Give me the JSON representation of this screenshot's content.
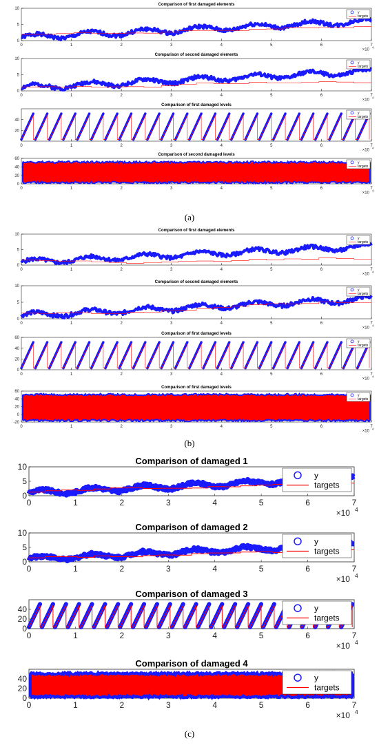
{
  "figure": {
    "panels": [
      {
        "label": "(a)",
        "small": true,
        "charts": [
          {
            "title": "Comparison of first damaged elements",
            "yticks": [
              0,
              5,
              10
            ],
            "ylim": [
              0,
              10
            ],
            "kind": "elements",
            "seed": 1
          },
          {
            "title": "Comparison of second damaged elements",
            "yticks": [
              0,
              5,
              10
            ],
            "ylim": [
              0,
              10
            ],
            "kind": "elements",
            "seed": 2
          },
          {
            "title": "Comparison of first damaged levels",
            "yticks": [
              20,
              40
            ],
            "ylim": [
              0,
              60
            ],
            "kind": "levels",
            "seed": 3
          },
          {
            "title": "Comparison of second damaged levels",
            "yticks": [
              0,
              20,
              40,
              60
            ],
            "ylim": [
              0,
              60
            ],
            "kind": "fill",
            "seed": 4
          }
        ]
      },
      {
        "label": "(b)",
        "small": true,
        "charts": [
          {
            "title": "Comparison of first damaged elements",
            "yticks": [
              0,
              5,
              10
            ],
            "ylim": [
              0,
              10
            ],
            "kind": "elements",
            "seed": 5
          },
          {
            "title": "Comparison of second damaged elements",
            "yticks": [
              0,
              5,
              10
            ],
            "ylim": [
              0,
              10
            ],
            "kind": "elements",
            "seed": 6
          },
          {
            "title": "Comparison of first damaged levels",
            "yticks": [
              0,
              20,
              40,
              60
            ],
            "ylim": [
              0,
              60
            ],
            "kind": "levels",
            "seed": 7
          },
          {
            "title": "Comparison of first damaged levels",
            "yticks": [
              -20,
              0,
              20,
              40,
              60
            ],
            "ylim": [
              -20,
              60
            ],
            "kind": "fill",
            "seed": 8
          }
        ]
      },
      {
        "label": "(c)",
        "small": false,
        "charts": [
          {
            "title": "Comparison of damaged 1",
            "yticks": [
              0,
              5,
              10
            ],
            "ylim": [
              0,
              10
            ],
            "kind": "elements",
            "seed": 9
          },
          {
            "title": "Comparison of damaged 2",
            "yticks": [
              0,
              5,
              10
            ],
            "ylim": [
              0,
              10
            ],
            "kind": "elements",
            "seed": 10
          },
          {
            "title": "Comparison of damaged 3",
            "yticks": [
              0,
              20,
              40
            ],
            "ylim": [
              0,
              60
            ],
            "kind": "levels",
            "seed": 11
          },
          {
            "title": "Comparison of damaged 4",
            "yticks": [
              0,
              20,
              40
            ],
            "ylim": [
              0,
              60
            ],
            "kind": "fill",
            "seed": 12
          }
        ]
      }
    ],
    "xticks": [
      0,
      1,
      2,
      3,
      4,
      5,
      6,
      7
    ],
    "xscale_label": "×10",
    "xscale_exp": "4",
    "legend": [
      "y",
      "targets"
    ]
  },
  "chart_data": [
    {
      "type": "scatter",
      "title": "Comparison of first damaged elements",
      "xlim": [
        0,
        70000
      ],
      "ylim": [
        0,
        10
      ],
      "series": [
        {
          "name": "y"
        },
        {
          "name": "targets"
        }
      ]
    },
    {
      "type": "scatter",
      "title": "Comparison of second damaged elements",
      "xlim": [
        0,
        70000
      ],
      "ylim": [
        0,
        10
      ],
      "series": [
        {
          "name": "y"
        },
        {
          "name": "targets"
        }
      ]
    },
    {
      "type": "scatter",
      "title": "Comparison of first damaged levels",
      "xlim": [
        0,
        70000
      ],
      "ylim": [
        0,
        60
      ],
      "series": [
        {
          "name": "y"
        },
        {
          "name": "targets"
        }
      ]
    },
    {
      "type": "scatter",
      "title": "Comparison of second damaged levels",
      "xlim": [
        0,
        70000
      ],
      "ylim": [
        0,
        60
      ],
      "series": [
        {
          "name": "y"
        },
        {
          "name": "targets"
        }
      ]
    },
    {
      "type": "scatter",
      "title": "Comparison of first damaged elements",
      "xlim": [
        0,
        70000
      ],
      "ylim": [
        0,
        10
      ],
      "series": [
        {
          "name": "y"
        },
        {
          "name": "targets"
        }
      ]
    },
    {
      "type": "scatter",
      "title": "Comparison of second damaged elements",
      "xlim": [
        0,
        70000
      ],
      "ylim": [
        0,
        10
      ],
      "series": [
        {
          "name": "y"
        },
        {
          "name": "targets"
        }
      ]
    },
    {
      "type": "scatter",
      "title": "Comparison of first damaged levels",
      "xlim": [
        0,
        70000
      ],
      "ylim": [
        0,
        60
      ],
      "series": [
        {
          "name": "y"
        },
        {
          "name": "targets"
        }
      ]
    },
    {
      "type": "scatter",
      "title": "Comparison of first damaged levels",
      "xlim": [
        0,
        70000
      ],
      "ylim": [
        -20,
        60
      ],
      "series": [
        {
          "name": "y"
        },
        {
          "name": "targets"
        }
      ]
    },
    {
      "type": "scatter",
      "title": "Comparison of damaged 1",
      "xlim": [
        0,
        70000
      ],
      "ylim": [
        0,
        10
      ],
      "series": [
        {
          "name": "y"
        },
        {
          "name": "targets"
        }
      ]
    },
    {
      "type": "scatter",
      "title": "Comparison of damaged 2",
      "xlim": [
        0,
        70000
      ],
      "ylim": [
        0,
        10
      ],
      "series": [
        {
          "name": "y"
        },
        {
          "name": "targets"
        }
      ]
    },
    {
      "type": "scatter",
      "title": "Comparison of damaged 3",
      "xlim": [
        0,
        70000
      ],
      "ylim": [
        0,
        60
      ],
      "series": [
        {
          "name": "y"
        },
        {
          "name": "targets"
        }
      ]
    },
    {
      "type": "scatter",
      "title": "Comparison of damaged 4",
      "xlim": [
        0,
        70000
      ],
      "ylim": [
        0,
        60
      ],
      "series": [
        {
          "name": "y"
        },
        {
          "name": "targets"
        }
      ]
    }
  ]
}
